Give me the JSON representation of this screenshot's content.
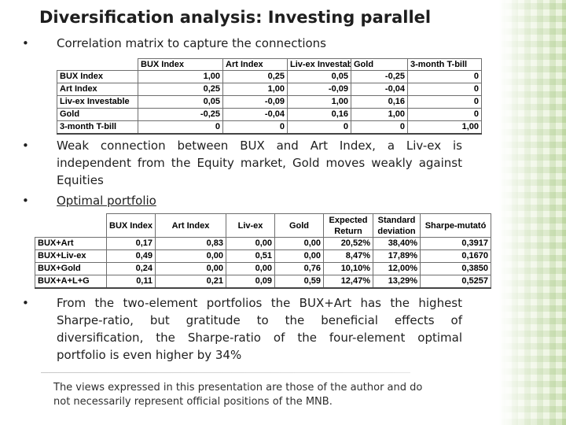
{
  "title": "Diversification analysis: Investing parallel",
  "bullet_symbol": "•",
  "bullets": {
    "b1": "Correlation matrix to capture the connections",
    "b2": "Weak connection between BUX and Art Index, a Liv-ex is independent from the Equity market, Gold moves weakly against Equities",
    "b3": "Optimal portfolio",
    "b4": "From the two-element portfolios the BUX+Art has the highest Sharpe-ratio, but gratitude to the beneficial effects of diversification, the Sharpe-ratio of the four-element optimal portfolio is even higher by 34%"
  },
  "correlation_table": {
    "headers": [
      "BUX Index",
      "Art Index",
      "Liv-ex Investable",
      "Gold",
      "3-month T-bill"
    ],
    "rows": [
      {
        "label": "BUX Index",
        "values": [
          "1,00",
          "0,25",
          "0,05",
          "-0,25",
          "0"
        ]
      },
      {
        "label": "Art Index",
        "values": [
          "0,25",
          "1,00",
          "-0,09",
          "-0,04",
          "0"
        ]
      },
      {
        "label": "Liv-ex Investable",
        "values": [
          "0,05",
          "-0,09",
          "1,00",
          "0,16",
          "0"
        ]
      },
      {
        "label": "Gold",
        "values": [
          "-0,25",
          "-0,04",
          "0,16",
          "1,00",
          "0"
        ]
      },
      {
        "label": "3-month T-bill",
        "values": [
          "0",
          "0",
          "0",
          "0",
          "1,00"
        ]
      }
    ]
  },
  "portfolio_table": {
    "headers": [
      "BUX Index",
      "Art Index",
      "Liv-ex",
      "Gold",
      "Expected Return",
      "Standard deviation",
      "Sharpe-mutató"
    ],
    "rows": [
      {
        "label": "BUX+Art",
        "values": [
          "0,17",
          "0,83",
          "0,00",
          "0,00",
          "20,52%",
          "38,40%",
          "0,3917"
        ]
      },
      {
        "label": "BUX+Liv-ex",
        "values": [
          "0,49",
          "0,00",
          "0,51",
          "0,00",
          "8,47%",
          "17,89%",
          "0,1670"
        ]
      },
      {
        "label": "BUX+Gold",
        "values": [
          "0,24",
          "0,00",
          "0,00",
          "0,76",
          "10,10%",
          "12,00%",
          "0,3850"
        ]
      },
      {
        "label": "BUX+A+L+G",
        "values": [
          "0,11",
          "0,21",
          "0,09",
          "0,59",
          "12,47%",
          "13,29%",
          "0,5257"
        ]
      }
    ]
  },
  "footer": "The views expressed in this presentation are those of the author and do not necessarily represent official positions of the MNB.",
  "colors": {
    "text": "#1e1e1e",
    "stripe": "#78aa46",
    "grid_border": "#6e6e6e"
  }
}
